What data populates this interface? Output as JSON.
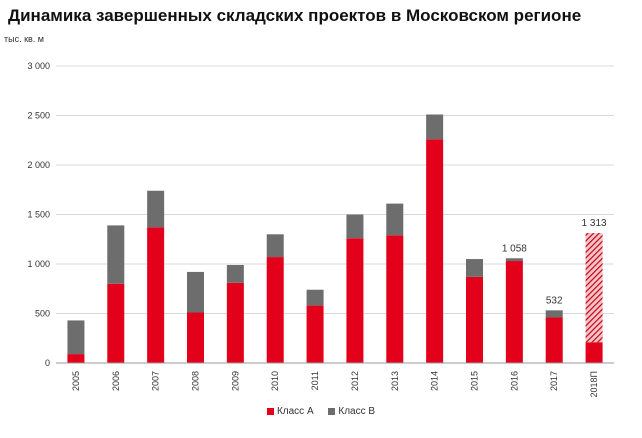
{
  "chart_data": {
    "type": "bar",
    "stacked": true,
    "title": "Динамика завершенных складских проектов в Московском регионе",
    "ylabel": "тыс. кв. м",
    "xlabel": "",
    "ylim": [
      0,
      3000
    ],
    "yticks": [
      0,
      500,
      1000,
      1500,
      2000,
      2500,
      3000
    ],
    "ytick_labels": [
      "0",
      "500",
      "1 000",
      "1 500",
      "2 000",
      "2 500",
      "3 000"
    ],
    "grid": true,
    "legend_position": "bottom",
    "categories": [
      "2005",
      "2006",
      "2007",
      "2008",
      "2009",
      "2010",
      "2011",
      "2012",
      "2013",
      "2014",
      "2015",
      "2016",
      "2017",
      "2018П"
    ],
    "series": [
      {
        "name": "Класс А",
        "color": "#e3001b",
        "values": [
          90,
          800,
          1370,
          510,
          810,
          1070,
          580,
          1260,
          1290,
          2260,
          870,
          1030,
          460,
          210
        ]
      },
      {
        "name": "Класс В",
        "color": "#6d6d6d",
        "values": [
          340,
          590,
          370,
          410,
          180,
          230,
          160,
          240,
          320,
          250,
          180,
          28,
          72,
          0
        ]
      }
    ],
    "forecast": {
      "category": "2018П",
      "value": 1103,
      "pattern": "hatched-red"
    },
    "annotations": [
      {
        "category": "2016",
        "value": 1058,
        "text": "1 058"
      },
      {
        "category": "2017",
        "value": 532,
        "text": "532"
      },
      {
        "category": "2018П",
        "value": 1313,
        "text": "1 313"
      }
    ]
  }
}
